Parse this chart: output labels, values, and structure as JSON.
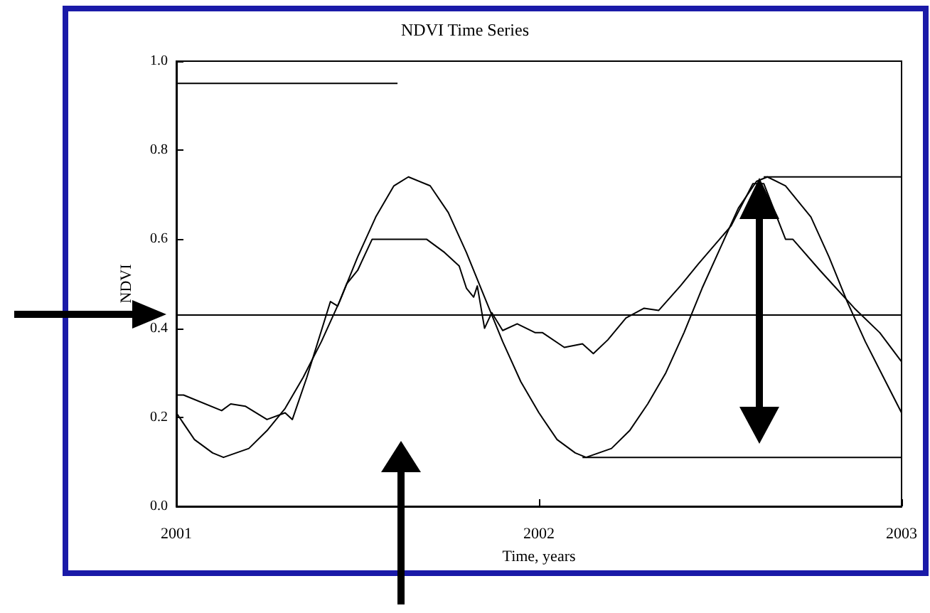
{
  "chart_data": {
    "type": "line",
    "title": "NDVI Time Series",
    "xlabel": "Time, years",
    "ylabel": "NDVI",
    "xlim": [
      2001,
      2003
    ],
    "xticks": [
      2001,
      2002,
      2003
    ],
    "ylim": [
      0,
      1
    ],
    "yticks": [
      {
        "value": 0,
        "label": "0.0"
      },
      {
        "value": 0.2,
        "label": "0.2"
      },
      {
        "value": 0.4,
        "label": "0.4"
      },
      {
        "value": 0.6,
        "label": "0.6"
      },
      {
        "value": 0.8,
        "label": "0.8"
      },
      {
        "value": 1,
        "label": "1.0"
      }
    ],
    "grid": false,
    "marker": "none",
    "line_style": "solid",
    "ref_lines": [
      {
        "axis": "y",
        "value": 0.43,
        "color": "#000000"
      }
    ],
    "series": [
      {
        "color": "#000000",
        "x": [
          2001,
          2001.05,
          2001.1,
          2001.13,
          2001.2,
          2001.25,
          2001.3,
          2001.35,
          2001.4,
          2001.45,
          2001.5,
          2001.55,
          2001.6,
          2001.64,
          2001.7,
          2001.75,
          2001.8,
          2001.85,
          2001.9,
          2001.95,
          2002,
          2002.05,
          2002.1,
          2002.13,
          2002.2,
          2002.25,
          2002.3,
          2002.35,
          2002.4,
          2002.45,
          2002.5,
          2002.55,
          2002.6,
          2002.63,
          2002.68,
          2002.75,
          2002.8,
          2002.85,
          2002.9,
          2002.95,
          2003
        ],
        "values": [
          0.21,
          0.15,
          0.12,
          0.11,
          0.13,
          0.17,
          0.22,
          0.29,
          0.37,
          0.46,
          0.56,
          0.65,
          0.72,
          0.74,
          0.72,
          0.66,
          0.57,
          0.47,
          0.37,
          0.28,
          0.21,
          0.15,
          0.12,
          0.11,
          0.13,
          0.17,
          0.23,
          0.3,
          0.39,
          0.49,
          0.58,
          0.67,
          0.73,
          0.74,
          0.72,
          0.65,
          0.56,
          0.46,
          0.37,
          0.29,
          0.21
        ]
      },
      {
        "color": "#000000",
        "x": [
          2001,
          2001.02,
          2001.125,
          2001.15,
          2001.19,
          2001.25,
          2001.3,
          2001.32,
          2001.36,
          2001.425,
          2001.445,
          2001.47,
          2001.5,
          2001.54,
          2001.69,
          2001.74,
          2001.78,
          2001.8,
          2001.82,
          2001.83,
          2001.85,
          2001.87,
          2001.9,
          2001.94,
          2001.99,
          2002.01,
          2002.07,
          2002.12,
          2002.15,
          2002.19,
          2002.24,
          2002.29,
          2002.33,
          2002.39,
          2002.44,
          2002.53,
          2002.59,
          2002.62,
          2002.68,
          2002.7,
          2002.775,
          2002.87,
          2002.94,
          2003
        ],
        "values": [
          0.25,
          0.25,
          0.215,
          0.23,
          0.225,
          0.195,
          0.21,
          0.195,
          0.29,
          0.46,
          0.45,
          0.5,
          0.53,
          0.6,
          0.6,
          0.57,
          0.54,
          0.49,
          0.47,
          0.495,
          0.4,
          0.435,
          0.395,
          0.41,
          0.39,
          0.39,
          0.357,
          0.365,
          0.343,
          0.374,
          0.423,
          0.445,
          0.44,
          0.495,
          0.545,
          0.63,
          0.725,
          0.725,
          0.6,
          0.6,
          0.53,
          0.445,
          0.39,
          0.325
        ]
      },
      {
        "color": "#000000",
        "x": [
          2001,
          2001.61
        ],
        "values": [
          0.95,
          0.95
        ]
      },
      {
        "color": "#000000",
        "x": [
          2002.62,
          2003
        ],
        "values": [
          0.74,
          0.74
        ]
      },
      {
        "color": "#000000",
        "x": [
          2002.12,
          2003
        ],
        "values": [
          0.11,
          0.11
        ]
      }
    ]
  }
}
